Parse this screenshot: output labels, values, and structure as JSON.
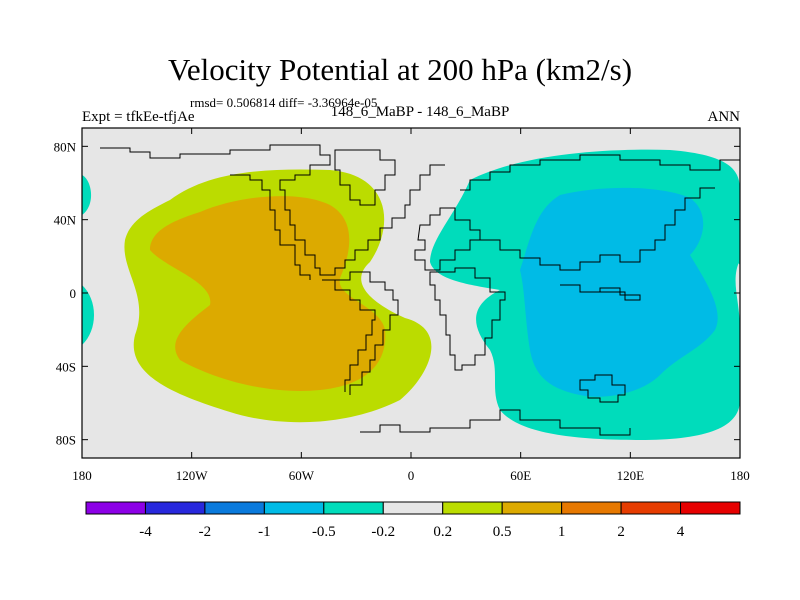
{
  "header": {
    "title": "Velocity Potential at 200 hPa (km2/s)",
    "stats": "rmsd= 0.506814 diff= -3.36964e-05",
    "experiment": "Expt = tfkEe-tfjAe",
    "case": "148_6_MaBP - 148_6_MaBP",
    "season": "ANN"
  },
  "colors": {
    "background_field": "#e6e6e6",
    "positive_0_5": "#bbdc00",
    "positive_1": "#dcaa00",
    "negative_0_5": "#00dcbb",
    "negative_1": "#00bbe6",
    "coastline": "#000000"
  },
  "chart_data": {
    "type": "heatmap",
    "title": "Velocity Potential at 200 hPa (km2/s)",
    "projection": "cylindrical-equidistant",
    "xlim": [
      -180,
      180
    ],
    "ylim": [
      -90,
      90
    ],
    "x_ticks": [
      {
        "value": -180,
        "label": "180"
      },
      {
        "value": -120,
        "label": "120W"
      },
      {
        "value": -60,
        "label": "60W"
      },
      {
        "value": 0,
        "label": "0"
      },
      {
        "value": 60,
        "label": "60E"
      },
      {
        "value": 120,
        "label": "120E"
      },
      {
        "value": 180,
        "label": "180"
      }
    ],
    "y_ticks": [
      {
        "value": 80,
        "label": "80N"
      },
      {
        "value": 40,
        "label": "40N"
      },
      {
        "value": 0,
        "label": "0"
      },
      {
        "value": -40,
        "label": "40S"
      },
      {
        "value": -80,
        "label": "80S"
      }
    ],
    "colorbar": {
      "colors": [
        "#8c00e6",
        "#2828dc",
        "#0a7adc",
        "#00bbe6",
        "#00dcbb",
        "#e6e6e6",
        "#bbdc00",
        "#dcaa00",
        "#e67800",
        "#e63c00",
        "#e60000"
      ],
      "labels": [
        "-4",
        "-2",
        "-1",
        "-0.5",
        "-0.2",
        "0.2",
        "0.5",
        "1",
        "2",
        "4"
      ]
    },
    "regions": [
      {
        "name": "positive-outer",
        "level": "0.5 to 1",
        "center_lon": -75,
        "center_lat": 8
      },
      {
        "name": "positive-inner",
        "level": "1 to 2",
        "center_lon": -75,
        "center_lat": 8
      },
      {
        "name": "negative-outer",
        "level": "-1 to -0.5",
        "center_lon": 100,
        "center_lat": 5
      },
      {
        "name": "negative-inner",
        "level": "-2 to -1",
        "center_lon": 100,
        "center_lat": 10
      }
    ]
  }
}
